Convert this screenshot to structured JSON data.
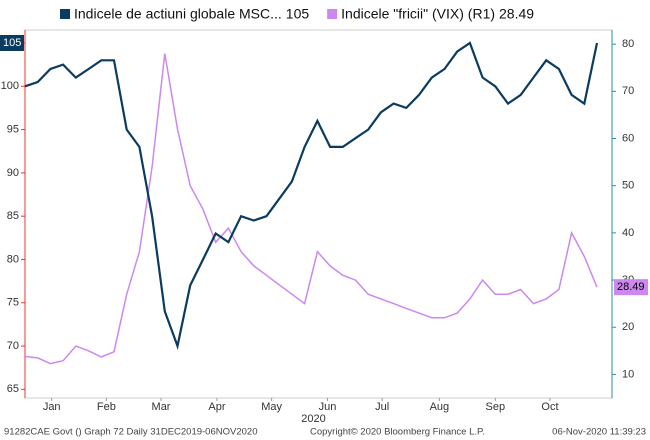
{
  "chart_data": {
    "type": "line",
    "xlim": [
      0,
      45
    ],
    "xticks": [
      {
        "value": 2.1,
        "label": "Jan"
      },
      {
        "value": 6.4,
        "label": "Feb"
      },
      {
        "value": 10.7,
        "label": "Mar"
      },
      {
        "value": 15.1,
        "label": "Apr"
      },
      {
        "value": 19.4,
        "label": "May"
      },
      {
        "value": 23.8,
        "label": "Jun"
      },
      {
        "value": 28.1,
        "label": "Jul"
      },
      {
        "value": 32.6,
        "label": "Aug"
      },
      {
        "value": 37,
        "label": "Sep"
      },
      {
        "value": 41.3,
        "label": "Oct"
      }
    ],
    "x_year_label": "2020",
    "ylim": [
      64,
      106.5
    ],
    "yticks": [
      65,
      70,
      75,
      80,
      85,
      90,
      95,
      100,
      105
    ],
    "y2lim": [
      5,
      83
    ],
    "y2ticks": [
      10,
      20,
      30,
      40,
      50,
      60,
      70,
      80
    ],
    "series": [
      {
        "name": "Indicele de actiuni globale MSC...",
        "last_label": "105",
        "color": "#0b3b5e",
        "axis": "y",
        "values": [
          100,
          100.5,
          102,
          102.5,
          101,
          102,
          103,
          103,
          95,
          93,
          85,
          74,
          70,
          77,
          80,
          83,
          82,
          85,
          84.5,
          85,
          87,
          89,
          93,
          96,
          93,
          93,
          94,
          95,
          97,
          98,
          97.5,
          99,
          101,
          102,
          104,
          105,
          101,
          100,
          98,
          99,
          101,
          103,
          102,
          99,
          98,
          105
        ]
      },
      {
        "name": "Indicele \"fricii\" (VIX) (R1)",
        "last_label": "28.49",
        "color": "#cc88ee",
        "axis": "y2",
        "values": [
          13.8,
          13.5,
          12.3,
          12.9,
          16,
          15,
          13.7,
          14.8,
          27,
          36,
          54,
          78,
          62,
          50,
          45,
          38,
          41,
          36,
          33,
          31,
          29,
          27,
          25,
          36,
          33,
          31,
          30,
          27,
          26,
          25,
          24,
          23,
          22,
          22,
          23,
          26,
          30,
          27,
          27,
          28,
          25,
          26,
          28,
          40,
          35,
          28.49
        ]
      }
    ],
    "footer": {
      "left": "91282CAE Govt () Graph 72  Daily 31DEC2019-06NOV2020",
      "center": "Copyright© 2020 Bloomberg Finance L.P.",
      "right": "06-Nov-2020 11:39:23"
    }
  }
}
